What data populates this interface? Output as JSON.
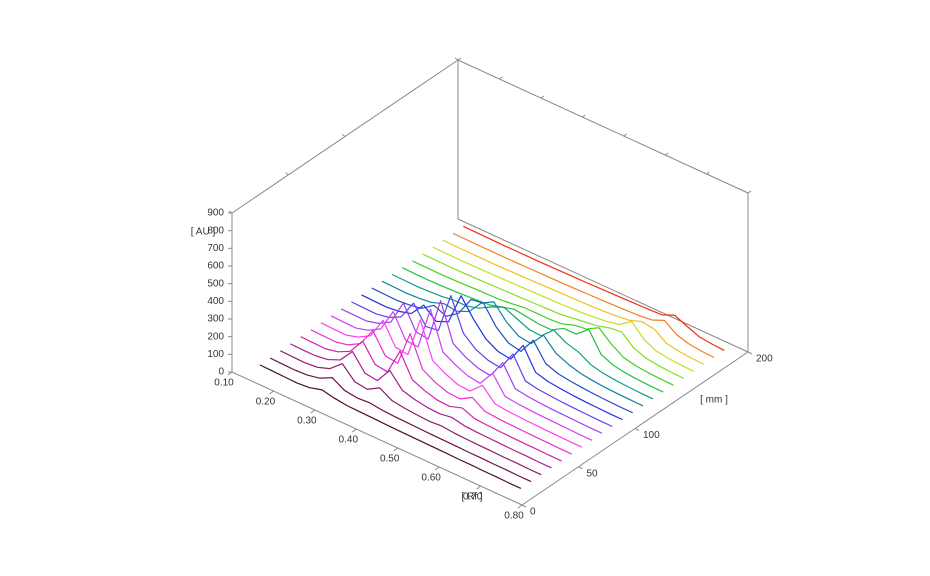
{
  "chart_data": {
    "type": "waterfall",
    "y_label": "[ AU ]",
    "x_label": "[ Rf ]",
    "z_label": "[ mm ]",
    "xlim": [
      0.1,
      0.8
    ],
    "xticks": [
      {
        "value": 0.1,
        "label": "0.10"
      },
      {
        "value": 0.2,
        "label": "0.20"
      },
      {
        "value": 0.3,
        "label": "0.30"
      },
      {
        "value": 0.4,
        "label": "0.40"
      },
      {
        "value": 0.5,
        "label": "0.50"
      },
      {
        "value": 0.6,
        "label": "0.60"
      },
      {
        "value": 0.7,
        "label": "0.70"
      },
      {
        "value": 0.8,
        "label": "0.80"
      }
    ],
    "ylim": [
      0,
      900
    ],
    "yticks": [
      0,
      100,
      200,
      300,
      400,
      500,
      600,
      700,
      800,
      900
    ],
    "zlim": [
      0,
      200
    ],
    "zticks": [
      0,
      50,
      100,
      200
    ],
    "x": [
      0.14,
      0.17,
      0.2,
      0.23,
      0.26,
      0.29,
      0.32,
      0.35,
      0.38,
      0.41,
      0.44,
      0.47,
      0.5,
      0.53,
      0.56,
      0.59,
      0.62,
      0.65,
      0.68,
      0.71,
      0.74,
      0.77
    ],
    "series": [
      {
        "z": 10,
        "color": "#4a1028",
        "values": [
          40,
          38,
          36,
          34,
          40,
          60,
          45,
          36,
          34,
          32,
          30,
          28,
          27,
          26,
          25,
          24,
          22,
          22,
          20,
          20,
          18,
          18
        ]
      },
      {
        "z": 19,
        "color": "#6a1048",
        "values": [
          40,
          38,
          36,
          40,
          55,
          90,
          50,
          40,
          45,
          36,
          32,
          30,
          28,
          26,
          25,
          24,
          22,
          22,
          20,
          20,
          18,
          18
        ]
      },
      {
        "z": 28,
        "color": "#8a1a6a",
        "values": [
          42,
          40,
          38,
          45,
          70,
          130,
          60,
          50,
          90,
          50,
          40,
          34,
          30,
          35,
          28,
          25,
          23,
          22,
          20,
          20,
          18,
          18
        ]
      },
      {
        "z": 37,
        "color": "#b01890",
        "values": [
          42,
          40,
          40,
          50,
          80,
          160,
          70,
          60,
          150,
          70,
          50,
          38,
          34,
          45,
          30,
          26,
          24,
          22,
          20,
          20,
          18,
          18
        ]
      },
      {
        "z": 46,
        "color": "#d020b0",
        "values": [
          44,
          42,
          40,
          55,
          90,
          180,
          80,
          70,
          220,
          90,
          60,
          40,
          36,
          60,
          32,
          27,
          24,
          22,
          20,
          20,
          18,
          18
        ]
      },
      {
        "z": 55,
        "color": "#e830d0",
        "values": [
          44,
          42,
          40,
          55,
          95,
          200,
          90,
          80,
          280,
          110,
          70,
          45,
          40,
          80,
          35,
          28,
          25,
          23,
          21,
          20,
          18,
          18
        ]
      },
      {
        "z": 64,
        "color": "#ff40f0",
        "values": [
          45,
          42,
          40,
          60,
          100,
          220,
          100,
          90,
          320,
          120,
          80,
          50,
          45,
          110,
          38,
          30,
          26,
          23,
          21,
          20,
          18,
          18
        ]
      },
      {
        "z": 73,
        "color": "#d040f0",
        "values": [
          45,
          42,
          40,
          60,
          100,
          230,
          100,
          95,
          340,
          130,
          90,
          60,
          50,
          140,
          40,
          32,
          27,
          24,
          22,
          20,
          18,
          18
        ]
      },
      {
        "z": 82,
        "color": "#a040f0",
        "values": [
          45,
          43,
          42,
          60,
          100,
          240,
          110,
          100,
          350,
          140,
          95,
          65,
          55,
          160,
          45,
          34,
          28,
          24,
          22,
          20,
          18,
          18
        ]
      },
      {
        "z": 91,
        "color": "#6040f0",
        "values": [
          46,
          44,
          42,
          55,
          90,
          200,
          100,
          110,
          340,
          160,
          100,
          70,
          60,
          170,
          50,
          36,
          30,
          25,
          22,
          20,
          18,
          18
        ]
      },
      {
        "z": 100,
        "color": "#2030e0",
        "values": [
          46,
          44,
          42,
          50,
          70,
          150,
          90,
          120,
          300,
          200,
          120,
          80,
          70,
          180,
          60,
          40,
          32,
          26,
          22,
          20,
          18,
          18
        ]
      },
      {
        "z": 109,
        "color": "#2050c0",
        "values": [
          46,
          44,
          42,
          48,
          60,
          110,
          80,
          130,
          240,
          250,
          150,
          90,
          75,
          170,
          70,
          45,
          35,
          28,
          23,
          20,
          18,
          18
        ]
      },
      {
        "z": 118,
        "color": "#1080a0",
        "values": [
          46,
          44,
          42,
          46,
          55,
          80,
          70,
          100,
          180,
          220,
          140,
          90,
          80,
          160,
          90,
          60,
          40,
          30,
          24,
          21,
          19,
          18
        ]
      },
      {
        "z": 127,
        "color": "#10a080",
        "values": [
          45,
          44,
          42,
          45,
          50,
          60,
          60,
          80,
          120,
          150,
          120,
          90,
          85,
          150,
          110,
          90,
          50,
          34,
          26,
          22,
          19,
          18
        ]
      },
      {
        "z": 136,
        "color": "#20c040",
        "values": [
          45,
          43,
          42,
          44,
          46,
          50,
          55,
          60,
          80,
          100,
          90,
          80,
          80,
          120,
          120,
          180,
          70,
          40,
          28,
          22,
          19,
          18
        ]
      },
      {
        "z": 145,
        "color": "#40d020",
        "values": [
          44,
          43,
          42,
          43,
          45,
          48,
          50,
          52,
          60,
          70,
          70,
          70,
          75,
          100,
          110,
          150,
          90,
          45,
          30,
          23,
          20,
          18
        ]
      },
      {
        "z": 154,
        "color": "#80e020",
        "values": [
          44,
          43,
          42,
          42,
          44,
          46,
          48,
          50,
          52,
          55,
          58,
          60,
          70,
          80,
          90,
          110,
          120,
          60,
          34,
          25,
          20,
          18
        ]
      },
      {
        "z": 163,
        "color": "#c0e020",
        "values": [
          44,
          43,
          42,
          42,
          43,
          44,
          46,
          48,
          50,
          52,
          54,
          56,
          60,
          66,
          75,
          90,
          140,
          70,
          36,
          26,
          21,
          18
        ]
      },
      {
        "z": 172,
        "color": "#f0c020",
        "values": [
          44,
          43,
          42,
          42,
          42,
          43,
          44,
          46,
          48,
          50,
          52,
          54,
          56,
          60,
          66,
          75,
          100,
          90,
          40,
          28,
          22,
          19
        ]
      },
      {
        "z": 181,
        "color": "#f08020",
        "values": [
          44,
          43,
          42,
          42,
          42,
          42,
          43,
          44,
          45,
          46,
          48,
          50,
          52,
          55,
          58,
          62,
          70,
          100,
          50,
          30,
          22,
          19
        ]
      },
      {
        "z": 190,
        "color": "#f03010",
        "values": [
          45,
          44,
          43,
          42,
          42,
          42,
          42,
          43,
          44,
          45,
          46,
          48,
          50,
          52,
          54,
          56,
          60,
          90,
          60,
          32,
          24,
          20
        ]
      }
    ]
  }
}
